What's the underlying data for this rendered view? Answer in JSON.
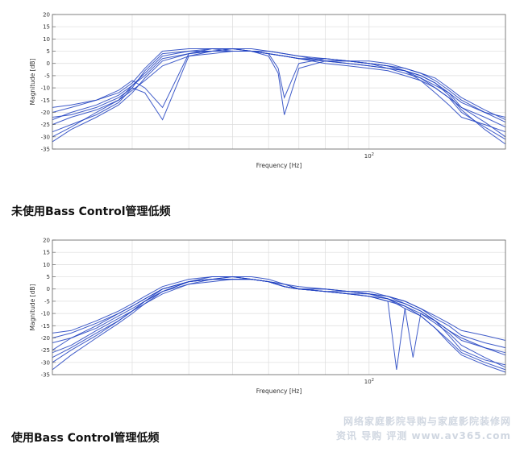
{
  "charts": [
    {
      "caption": "未使用Bass Control管理低频",
      "chart_data": {
        "type": "line",
        "xlabel": "Frequency [Hz]",
        "ylabel": "Magnitude [dB]",
        "xscale": "log",
        "xlim": [
          20,
          200
        ],
        "ylim": [
          -35,
          20
        ],
        "yticks": [
          20,
          15,
          10,
          5,
          0,
          -5,
          -10,
          -15,
          -20,
          -25,
          -30,
          -35
        ],
        "xtick_labels": [
          {
            "x": 100,
            "base": "10",
            "exp": "2"
          }
        ],
        "grid": true,
        "series_color": "#1f3fbf",
        "series": [
          {
            "x": [
              20,
              22,
              25,
              28,
              30,
              32,
              35,
              40,
              45,
              50,
              55,
              60,
              63,
              65,
              70,
              80,
              90,
              100,
              110,
              120,
              130,
              140,
              150,
              160,
              180,
              200
            ],
            "y": [
              -22,
              -21,
              -18,
              -14,
              -10,
              -12,
              -23,
              3,
              5,
              5,
              5,
              3,
              -4,
              -21,
              -2,
              1,
              1,
              0,
              -2,
              -3,
              -6,
              -10,
              -14,
              -18,
              -22,
              -26
            ]
          },
          {
            "x": [
              20,
              22,
              25,
              28,
              30,
              32,
              35,
              40,
              45,
              50,
              55,
              60,
              63,
              65,
              70,
              80,
              90,
              100,
              110,
              120,
              130,
              140,
              150,
              160,
              180,
              200
            ],
            "y": [
              -20,
              -18,
              -15,
              -11,
              -7,
              -10,
              -18,
              4,
              6,
              6,
              5,
              4,
              -2,
              -14,
              0,
              2,
              1,
              0,
              -1,
              -3,
              -7,
              -12,
              -17,
              -22,
              -25,
              -28
            ]
          },
          {
            "x": [
              20,
              22,
              25,
              28,
              30,
              32,
              35,
              40,
              45,
              50,
              55,
              60,
              65,
              70,
              80,
              90,
              100,
              110,
              120,
              130,
              140,
              150,
              160,
              180,
              200
            ],
            "y": [
              -25,
              -22,
              -19,
              -15,
              -9,
              -4,
              3,
              5,
              6,
              6,
              5,
              4,
              3,
              2,
              1,
              0,
              -1,
              -2,
              -4,
              -6,
              -9,
              -12,
              -16,
              -20,
              -24
            ]
          },
          {
            "x": [
              20,
              22,
              25,
              28,
              30,
              32,
              35,
              40,
              45,
              50,
              55,
              60,
              65,
              70,
              80,
              90,
              100,
              110,
              120,
              130,
              140,
              150,
              160,
              180,
              200
            ],
            "y": [
              -28,
              -25,
              -21,
              -16,
              -10,
              -3,
              4,
              5,
              5,
              6,
              6,
              5,
              4,
              3,
              2,
              1,
              0,
              -1,
              -3,
              -5,
              -8,
              -12,
              -18,
              -24,
              -30
            ]
          },
          {
            "x": [
              20,
              22,
              25,
              28,
              30,
              32,
              35,
              40,
              45,
              50,
              55,
              60,
              65,
              70,
              80,
              90,
              100,
              110,
              120,
              130,
              140,
              150,
              160,
              180,
              200
            ],
            "y": [
              -18,
              -17,
              -15,
              -12,
              -8,
              -2,
              5,
              6,
              6,
              5,
              5,
              4,
              3,
              2,
              2,
              1,
              1,
              0,
              -2,
              -4,
              -7,
              -11,
              -15,
              -20,
              -22
            ]
          },
          {
            "x": [
              20,
              22,
              25,
              28,
              30,
              32,
              35,
              40,
              45,
              50,
              55,
              60,
              65,
              70,
              80,
              90,
              100,
              110,
              120,
              130,
              140,
              150,
              160,
              180,
              200
            ],
            "y": [
              -32,
              -27,
              -22,
              -17,
              -12,
              -6,
              1,
              4,
              5,
              6,
              5,
              5,
              4,
              3,
              1,
              0,
              -1,
              -2,
              -3,
              -5,
              -8,
              -13,
              -19,
              -27,
              -33
            ]
          },
          {
            "x": [
              20,
              22,
              25,
              28,
              30,
              32,
              35,
              40,
              45,
              50,
              55,
              60,
              65,
              70,
              80,
              90,
              100,
              110,
              120,
              130,
              140,
              150,
              160,
              180,
              200
            ],
            "y": [
              -23,
              -20,
              -17,
              -13,
              -9,
              -5,
              2,
              4,
              5,
              5,
              5,
              4,
              3,
              2,
              1,
              1,
              0,
              -1,
              -2,
              -4,
              -6,
              -10,
              -14,
              -19,
              -23
            ]
          },
          {
            "x": [
              20,
              22,
              25,
              28,
              30,
              32,
              35,
              40,
              45,
              50,
              55,
              60,
              65,
              70,
              80,
              90,
              100,
              110,
              120,
              130,
              140,
              150,
              160,
              180,
              200
            ],
            "y": [
              -30,
              -26,
              -20,
              -15,
              -11,
              -7,
              -1,
              3,
              4,
              5,
              5,
              4,
              3,
              2,
              0,
              -1,
              -2,
              -3,
              -5,
              -7,
              -10,
              -14,
              -20,
              -26,
              -31
            ]
          }
        ]
      }
    },
    {
      "caption": "使用Bass Control管理低频",
      "chart_data": {
        "type": "line",
        "xlabel": "Frequency [Hz]",
        "ylabel": "Magnitude [dB]",
        "xscale": "log",
        "xlim": [
          20,
          200
        ],
        "ylim": [
          -35,
          20
        ],
        "yticks": [
          20,
          15,
          10,
          5,
          0,
          -5,
          -10,
          -15,
          -20,
          -25,
          -30,
          -35
        ],
        "xtick_labels": [
          {
            "x": 100,
            "base": "10",
            "exp": "2"
          }
        ],
        "grid": true,
        "series_color": "#1f3fbf",
        "series": [
          {
            "x": [
              20,
              22,
              25,
              28,
              30,
              32,
              35,
              40,
              45,
              50,
              55,
              60,
              65,
              70,
              80,
              90,
              100,
              110,
              120,
              125,
              130,
              140,
              150,
              160,
              180,
              200
            ],
            "y": [
              -25,
              -20,
              -15,
              -10,
              -7,
              -4,
              0,
              3,
              4,
              4,
              4,
              3,
              1,
              0,
              0,
              -1,
              -2,
              -4,
              -8,
              -28,
              -10,
              -13,
              -17,
              -20,
              -24,
              -27
            ]
          },
          {
            "x": [
              20,
              22,
              25,
              28,
              30,
              32,
              35,
              40,
              45,
              50,
              55,
              60,
              65,
              70,
              80,
              90,
              100,
              110,
              120,
              130,
              140,
              150,
              160,
              180,
              200
            ],
            "y": [
              -20,
              -18,
              -14,
              -10,
              -7,
              -4,
              0,
              3,
              5,
              5,
              4,
              3,
              1,
              0,
              -1,
              -1,
              -2,
              -4,
              -6,
              -9,
              -13,
              -17,
              -21,
              -24,
              -26
            ]
          },
          {
            "x": [
              20,
              22,
              25,
              28,
              30,
              32,
              35,
              40,
              45,
              50,
              55,
              60,
              65,
              70,
              80,
              90,
              100,
              110,
              120,
              130,
              140,
              150,
              160,
              180,
              200
            ],
            "y": [
              -18,
              -17,
              -13,
              -9,
              -6,
              -3,
              1,
              4,
              5,
              5,
              4,
              3,
              1,
              0,
              0,
              -1,
              -1,
              -3,
              -5,
              -8,
              -12,
              -15,
              -19,
              -22,
              -24
            ]
          },
          {
            "x": [
              20,
              22,
              25,
              28,
              30,
              32,
              35,
              40,
              45,
              50,
              55,
              60,
              65,
              70,
              80,
              90,
              100,
              110,
              120,
              130,
              140,
              150,
              160,
              180,
              200
            ],
            "y": [
              -30,
              -25,
              -19,
              -13,
              -9,
              -5,
              -1,
              3,
              4,
              5,
              4,
              3,
              2,
              0,
              -1,
              -2,
              -3,
              -5,
              -7,
              -10,
              -14,
              -18,
              -23,
              -28,
              -32
            ]
          },
          {
            "x": [
              20,
              22,
              25,
              28,
              30,
              32,
              35,
              40,
              45,
              50,
              55,
              60,
              65,
              70,
              80,
              90,
              100,
              110,
              120,
              130,
              140,
              150,
              160,
              180,
              200
            ],
            "y": [
              -33,
              -27,
              -20,
              -14,
              -10,
              -6,
              -2,
              2,
              4,
              4,
              4,
              3,
              1,
              0,
              -1,
              -2,
              -3,
              -4,
              -7,
              -11,
              -16,
              -22,
              -27,
              -31,
              -34
            ]
          },
          {
            "x": [
              20,
              22,
              25,
              28,
              30,
              32,
              35,
              40,
              45,
              50,
              55,
              60,
              65,
              70,
              80,
              90,
              100,
              110,
              120,
              130,
              140,
              150,
              160,
              180,
              200
            ],
            "y": [
              -22,
              -20,
              -16,
              -11,
              -8,
              -5,
              0,
              3,
              4,
              5,
              5,
              4,
              2,
              1,
              0,
              -1,
              -2,
              -3,
              -5,
              -8,
              -11,
              -14,
              -17,
              -19,
              -21
            ]
          },
          {
            "x": [
              20,
              22,
              25,
              28,
              30,
              32,
              35,
              40,
              45,
              50,
              55,
              60,
              65,
              70,
              80,
              90,
              100,
              110,
              120,
              130,
              140,
              150,
              160,
              180,
              200
            ],
            "y": [
              -26,
              -23,
              -17,
              -12,
              -9,
              -6,
              -1,
              2,
              3,
              4,
              4,
              3,
              2,
              0,
              -1,
              -2,
              -2,
              -3,
              -6,
              -9,
              -13,
              -19,
              -25,
              -29,
              -31
            ]
          },
          {
            "x": [
              20,
              22,
              25,
              28,
              30,
              32,
              35,
              40,
              45,
              50,
              55,
              60,
              65,
              70,
              80,
              90,
              100,
              110,
              115,
              120,
              130,
              140,
              150,
              160,
              180,
              200
            ],
            "y": [
              -28,
              -24,
              -18,
              -13,
              -9,
              -5,
              -1,
              3,
              4,
              4,
              4,
              3,
              1,
              0,
              -1,
              -2,
              -3,
              -5,
              -33,
              -8,
              -11,
              -16,
              -21,
              -26,
              -30,
              -33
            ]
          }
        ]
      }
    }
  ],
  "watermark": {
    "line1": "网络家庭影院导购与家庭影院装修网",
    "line2": "资讯 导购 评测 www.av365.com"
  }
}
